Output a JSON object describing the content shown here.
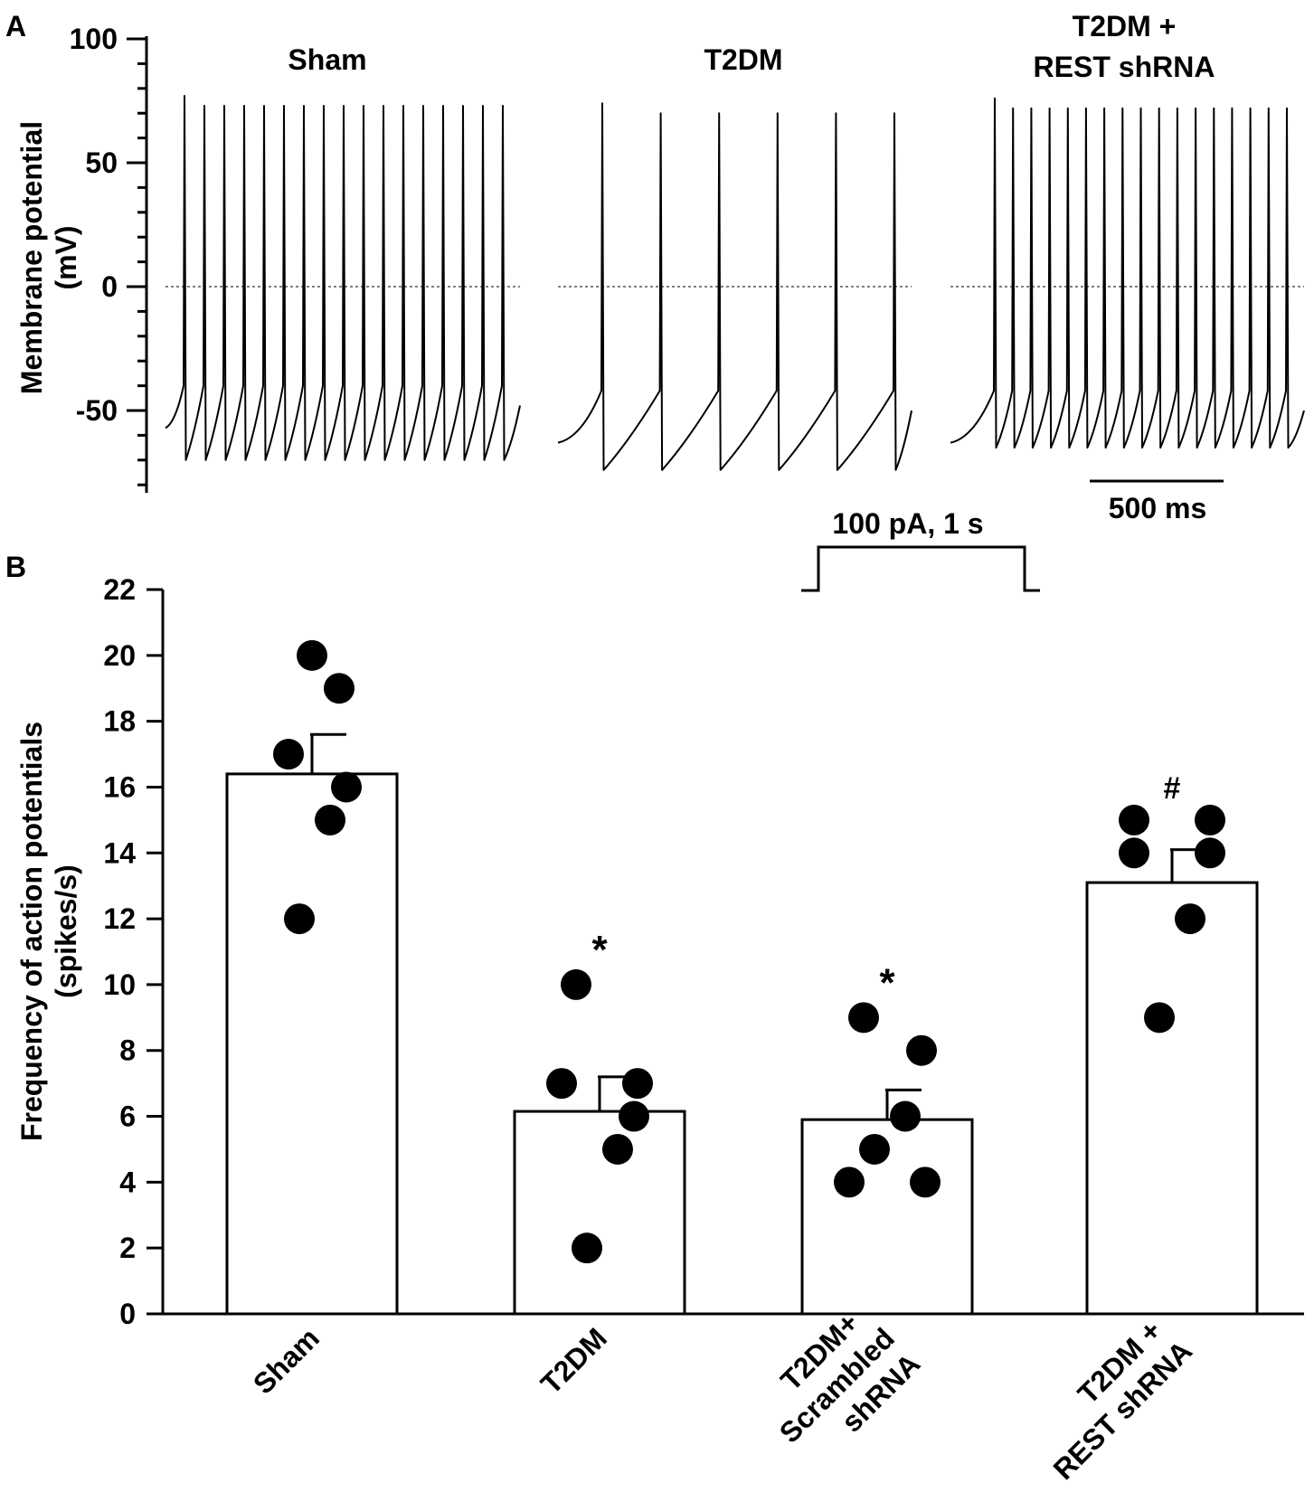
{
  "panel_a": {
    "label": "A",
    "ylabel_line1": "Membrane potential",
    "ylabel_line2": "(mV)",
    "y_ticks": [
      100,
      50,
      0,
      -50
    ],
    "y_range": [
      -83,
      100
    ],
    "groups": [
      {
        "name_line1": "Sham",
        "name_line2": "",
        "spike_count": 17,
        "rest_mV": -57,
        "trough_mV": -70,
        "threshold_mV": -40,
        "peak_mV": 73
      },
      {
        "name_line1": "T2DM",
        "name_line2": "",
        "spike_count": 6,
        "rest_mV": -63,
        "trough_mV": -74,
        "threshold_mV": -42,
        "peak_mV": 70
      },
      {
        "name_line1": "T2DM +",
        "name_line2": "REST shRNA",
        "spike_count": 17,
        "rest_mV": -63,
        "trough_mV": -65,
        "threshold_mV": -42,
        "peak_mV": 72
      }
    ],
    "scale_bar_label": "500 ms",
    "scale_bar_ms": 500,
    "stimulus_label": "100 pA, 1 s"
  },
  "panel_b": {
    "label": "B"
  },
  "chart_data": {
    "type": "bar",
    "title": "",
    "xlabel": "",
    "ylabel_line1": "Frequency of action potentials",
    "ylabel_line2": "(spikes/s)",
    "ylim": [
      0,
      22
    ],
    "y_ticks": [
      0,
      2,
      4,
      6,
      8,
      10,
      12,
      14,
      16,
      18,
      20,
      22
    ],
    "categories": [
      {
        "lines": [
          "Sham"
        ]
      },
      {
        "lines": [
          "T2DM"
        ]
      },
      {
        "lines": [
          "T2DM+",
          "Scrambled",
          "shRNA"
        ]
      },
      {
        "lines": [
          "T2DM +",
          "REST shRNA"
        ]
      }
    ],
    "values": [
      16.4,
      6.15,
      5.9,
      13.1
    ],
    "sem": [
      1.2,
      1.05,
      0.9,
      1.0
    ],
    "points": [
      [
        12,
        15,
        16,
        17,
        19,
        20
      ],
      [
        2,
        5,
        6,
        7,
        7,
        10
      ],
      [
        4,
        4,
        5,
        6,
        8,
        9
      ],
      [
        9,
        12,
        14,
        14,
        15,
        15
      ]
    ],
    "annotations": [
      "",
      "*",
      "*",
      "#"
    ]
  }
}
